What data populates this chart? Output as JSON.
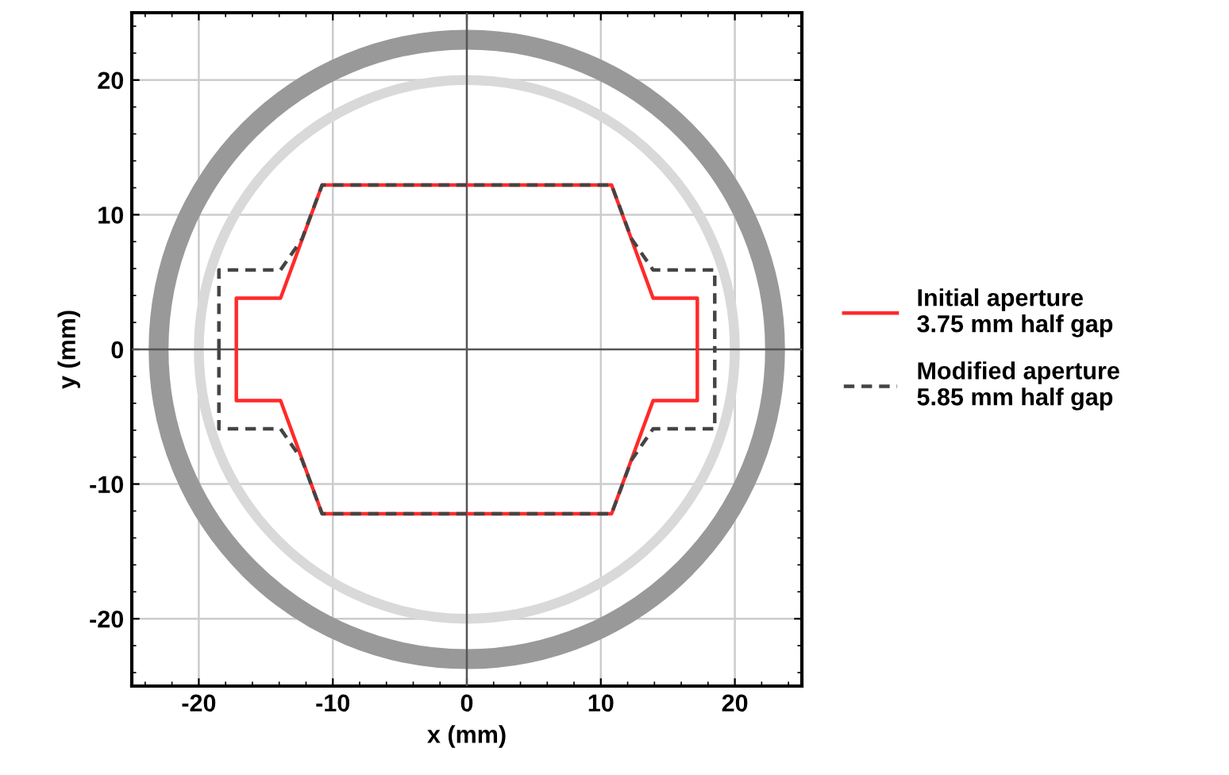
{
  "chart_data": {
    "type": "line",
    "xlabel": "x (mm)",
    "ylabel": "y (mm)",
    "xlim": [
      -25,
      25
    ],
    "ylim": [
      -25,
      25
    ],
    "xticks": [
      -20,
      -10,
      0,
      10,
      20
    ],
    "yticks": [
      -20,
      -10,
      0,
      10,
      20
    ],
    "grid": true,
    "legend": "right",
    "marker": "none",
    "series": [
      {
        "name": "Initial aperture\n3.75 mm half gap",
        "color": "#ff2a2a",
        "line_style": "solid",
        "x": [
          -17.2,
          -17.2,
          -13.9,
          -10.8,
          10.8,
          13.9,
          17.2,
          17.2,
          0,
          -17.2,
          -17.2,
          -13.9,
          -10.8,
          10.8,
          13.9,
          17.2,
          17.2
        ],
        "values": [
          0,
          3.8,
          3.8,
          12.2,
          12.2,
          3.8,
          3.8,
          0,
          null,
          0,
          -3.8,
          -3.8,
          -12.2,
          -12.2,
          -3.8,
          -3.8,
          0
        ]
      },
      {
        "name": "Modified aperture\n5.85 mm half gap",
        "color": "#444444",
        "line_style": "dashed",
        "x": [
          -18.5,
          -18.5,
          -13.9,
          -12.3,
          -10.8,
          10.8,
          12.3,
          13.9,
          18.5,
          18.5,
          0,
          -18.5,
          -18.5,
          -13.9,
          -12.3,
          -10.8,
          10.8,
          12.3,
          13.9,
          18.5,
          18.5
        ],
        "values": [
          0,
          5.9,
          5.9,
          8.2,
          12.2,
          12.2,
          8.2,
          5.9,
          5.9,
          0,
          null,
          0,
          -5.9,
          -5.9,
          -8.2,
          -12.2,
          -12.2,
          -8.2,
          -5.9,
          -5.9,
          0
        ]
      }
    ]
  }
}
